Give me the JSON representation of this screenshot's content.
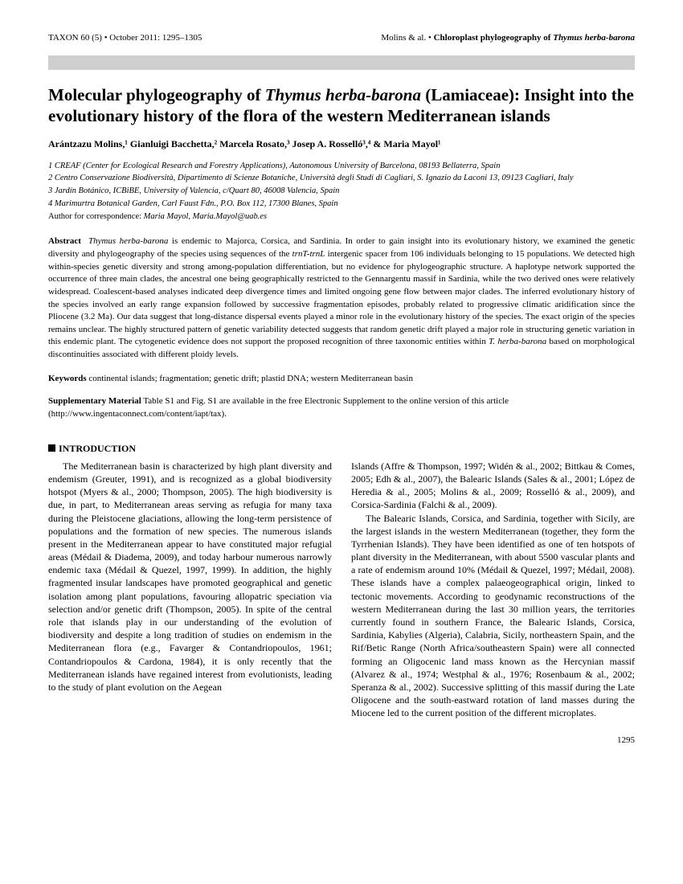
{
  "header": {
    "left": "TAXON 60 (5) • October 2011: 1295–1305",
    "right_authors": "Molins & al. • ",
    "right_title": "Chloroplast phylogeography of ",
    "right_species": "Thymus herba-barona"
  },
  "title": {
    "pre": "Molecular phylogeography of ",
    "species": "Thymus herba-barona",
    "post": " (Lamiaceae): Insight into the evolutionary history of the flora of the western Mediterranean islands"
  },
  "authors": "Arántzazu Molins,¹ Gianluigi Bacchetta,² Marcela Rosato,³ Josep A. Rosselló³,⁴ & Maria Mayol¹",
  "affiliations": [
    "1  CREAF (Center for Ecological Research and Forestry Applications), Autonomous University of Barcelona, 08193 Bellaterra, Spain",
    "2  Centro Conservazione Biodiversità, Dipartimento di Scienze Botaniche, Università degli Studi di Cagliari, S. Ignazio da Laconi 13, 09123 Cagliari, Italy",
    "3  Jardín Botánico, ICBiBE, University of Valencia, c/Quart 80, 46008 Valencia, Spain",
    "4  Marimurtra Botanical Garden, Carl Faust Fdn., P.O. Box 112, 17300 Blanes, Spain"
  ],
  "correspondence": {
    "label": "Author for correspondence: ",
    "value": "Maria Mayol, Maria.Mayol@uab.es"
  },
  "abstract": {
    "label": "Abstract",
    "species": "Thymus herba-barona",
    "text1": " is endemic to Majorca, Corsica, and Sardinia. In order to gain insight into its evolutionary history, we examined the genetic diversity and phylogeography of the species using sequences of the ",
    "gene": "trnT-trnL",
    "text2": " intergenic spacer from 106 individuals belonging to 15 populations. We detected high within-species genetic diversity and strong among-population differentiation, but no evidence for phylogeographic structure. A haplotype network supported the occurrence of three main clades, the ancestral one being geographically restricted to the Gennargentu massif in Sardinia, while the two derived ones were relatively widespread. Coalescent-based analyses indicated deep divergence times and limited ongoing gene flow between major clades. The inferred evolutionary history of the species involved an early range expansion followed by successive fragmentation episodes, probably related to progressive climatic aridification since the Pliocene (3.2 Ma). Our data suggest that long-distance dispersal events played a minor role in the evolutionary history of the species. The exact origin of the species remains unclear. The highly structured pattern of genetic variability detected suggests that random genetic drift played a major role in structuring genetic variation in this endemic plant. The cytogenetic evidence does not support the proposed recognition of three taxonomic entities within ",
    "species2": "T. herba-barona",
    "text3": " based on morphological discontinuities associated with different ploidy levels."
  },
  "keywords": {
    "label": "Keywords",
    "text": "  continental islands; fragmentation; genetic drift; plastid DNA; western Mediterranean basin"
  },
  "suppmat": {
    "label": "Supplementary Material",
    "text": "  Table S1 and Fig. S1 are available in the free Electronic Supplement to the online version of this article (http://www.ingentaconnect.com/content/iapt/tax)."
  },
  "section_heading": "INTRODUCTION",
  "body": {
    "col1_p1": "The Mediterranean basin is characterized by high plant diversity and endemism (Greuter, 1991), and is recognized as a global biodiversity hotspot (Myers & al., 2000; Thompson, 2005). The high biodiversity is due, in part, to Mediterranean areas serving as refugia for many taxa during the Pleistocene glaciations, allowing the long-term persistence of populations and the formation of new species. The numerous islands present in the Mediterranean appear to have constituted major refugial areas (Médail & Diadema, 2009), and today harbour numerous narrowly endemic taxa (Médail & Quezel, 1997, 1999). In addition, the highly fragmented insular landscapes have promoted geographical and genetic isolation among plant populations, favouring allopatric speciation via selection and/or genetic drift (Thompson, 2005). In spite of the central role that islands play in our understanding of the evolution of biodiversity and despite a long tradition of studies on endemism in the Mediterranean flora (e.g., Favarger & Contandriopoulos, 1961; Contandriopoulos & Cardona, 1984), it is only recently that the Mediterranean islands have regained interest from evolutionists, leading to the study of plant evolution on the Aegean",
    "col2_p1": "Islands (Affre & Thompson, 1997; Widén & al., 2002; Bittkau & Comes, 2005; Edh & al., 2007), the Balearic Islands (Sales & al., 2001; López de Heredia & al., 2005; Molins & al., 2009; Rosselló & al., 2009), and Corsica-Sardinia (Falchi & al., 2009).",
    "col2_p2": "The Balearic Islands, Corsica, and Sardinia, together with Sicily, are the largest islands in the western Mediterranean (together, they form the Tyrrhenian Islands). They have been identified as one of ten hotspots of plant diversity in the Mediterranean, with about 5500 vascular plants and a rate of endemism around 10% (Médail & Quezel, 1997; Médail, 2008). These islands have a complex palaeogeographical origin, linked to tectonic movements. According to geodynamic reconstructions of the western Mediterranean during the last 30 million years, the territories currently found in southern France, the Balearic Islands, Corsica, Sardinia, Kabylies (Algeria), Calabria, Sicily, northeastern Spain, and the Rif/Betic Range (North Africa/southeastern Spain) were all connected forming an Oligocenic land mass known as the Hercynian massif (Alvarez & al., 1974; Westphal & al., 1976; Rosenbaum & al., 2002; Speranza & al., 2002). Successive splitting of this massif during the Late Oligocene and the south-eastward rotation of land masses during the Miocene led to the current position of the different microplates."
  },
  "page_number": "1295"
}
